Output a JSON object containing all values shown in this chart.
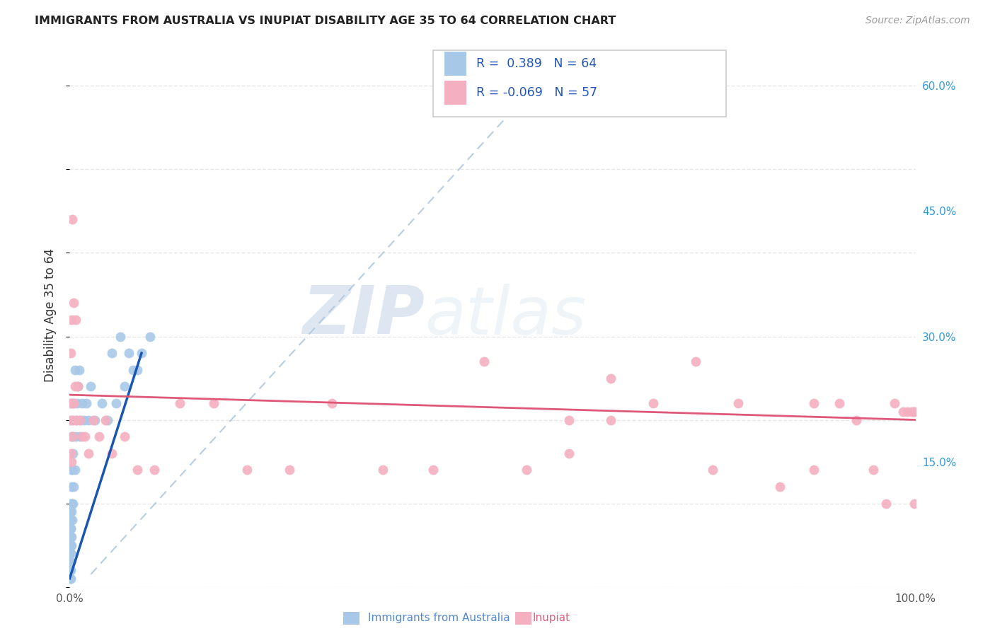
{
  "title": "IMMIGRANTS FROM AUSTRALIA VS INUPIAT DISABILITY AGE 35 TO 64 CORRELATION CHART",
  "source": "Source: ZipAtlas.com",
  "ylabel": "Disability Age 35 to 64",
  "xlim": [
    0,
    1.0
  ],
  "ylim": [
    0,
    0.65
  ],
  "xtick_positions": [
    0.0,
    0.2,
    0.4,
    0.6,
    0.8,
    1.0
  ],
  "xticklabels": [
    "0.0%",
    "",
    "",
    "",
    "",
    "100.0%"
  ],
  "ytick_positions": [
    0.15,
    0.3,
    0.45,
    0.6
  ],
  "ytick_labels": [
    "15.0%",
    "30.0%",
    "45.0%",
    "60.0%"
  ],
  "blue_R": 0.389,
  "blue_N": 64,
  "pink_R": -0.069,
  "pink_N": 57,
  "blue_color": "#a8c8e8",
  "pink_color": "#f4b0c0",
  "blue_line_color": "#1a56b0",
  "pink_line_color": "#e05878",
  "legend_blue_color": "#a8c8e8",
  "legend_pink_color": "#f4b0c0",
  "blue_scatter_x": [
    0.0005,
    0.0005,
    0.0005,
    0.0005,
    0.0005,
    0.0007,
    0.0007,
    0.0007,
    0.001,
    0.001,
    0.001,
    0.001,
    0.001,
    0.001,
    0.001,
    0.001,
    0.0012,
    0.0012,
    0.0012,
    0.0015,
    0.0015,
    0.0015,
    0.0018,
    0.0018,
    0.002,
    0.002,
    0.002,
    0.002,
    0.002,
    0.0025,
    0.003,
    0.003,
    0.003,
    0.0035,
    0.004,
    0.004,
    0.005,
    0.005,
    0.006,
    0.006,
    0.007,
    0.008,
    0.009,
    0.01,
    0.011,
    0.012,
    0.013,
    0.015,
    0.017,
    0.02,
    0.022,
    0.025,
    0.03,
    0.038,
    0.045,
    0.055,
    0.065,
    0.075,
    0.085,
    0.095,
    0.05,
    0.06,
    0.07,
    0.08
  ],
  "blue_scatter_y": [
    0.01,
    0.02,
    0.03,
    0.04,
    0.05,
    0.02,
    0.04,
    0.06,
    0.01,
    0.02,
    0.03,
    0.04,
    0.05,
    0.06,
    0.07,
    0.08,
    0.03,
    0.06,
    0.09,
    0.04,
    0.07,
    0.1,
    0.05,
    0.09,
    0.06,
    0.1,
    0.14,
    0.18,
    0.22,
    0.12,
    0.08,
    0.14,
    0.2,
    0.16,
    0.1,
    0.18,
    0.12,
    0.22,
    0.14,
    0.26,
    0.18,
    0.2,
    0.22,
    0.24,
    0.26,
    0.18,
    0.2,
    0.22,
    0.2,
    0.22,
    0.2,
    0.24,
    0.2,
    0.22,
    0.2,
    0.22,
    0.24,
    0.26,
    0.28,
    0.3,
    0.28,
    0.3,
    0.28,
    0.26
  ],
  "pink_scatter_x": [
    0.0005,
    0.001,
    0.001,
    0.0015,
    0.002,
    0.002,
    0.003,
    0.003,
    0.004,
    0.005,
    0.005,
    0.006,
    0.007,
    0.008,
    0.01,
    0.012,
    0.015,
    0.018,
    0.022,
    0.028,
    0.035,
    0.042,
    0.05,
    0.065,
    0.08,
    0.1,
    0.13,
    0.17,
    0.21,
    0.26,
    0.31,
    0.37,
    0.43,
    0.49,
    0.54,
    0.59,
    0.64,
    0.69,
    0.74,
    0.79,
    0.84,
    0.88,
    0.91,
    0.93,
    0.95,
    0.965,
    0.975,
    0.985,
    0.99,
    0.995,
    0.998,
    0.999,
    0.999,
    0.59,
    0.64,
    0.76,
    0.88
  ],
  "pink_scatter_y": [
    0.2,
    0.16,
    0.22,
    0.28,
    0.15,
    0.32,
    0.18,
    0.44,
    0.2,
    0.22,
    0.34,
    0.24,
    0.32,
    0.2,
    0.24,
    0.2,
    0.18,
    0.18,
    0.16,
    0.2,
    0.18,
    0.2,
    0.16,
    0.18,
    0.14,
    0.14,
    0.22,
    0.22,
    0.14,
    0.14,
    0.22,
    0.14,
    0.14,
    0.27,
    0.14,
    0.16,
    0.25,
    0.22,
    0.27,
    0.22,
    0.12,
    0.22,
    0.22,
    0.2,
    0.14,
    0.1,
    0.22,
    0.21,
    0.21,
    0.21,
    0.21,
    0.21,
    0.1,
    0.2,
    0.2,
    0.14,
    0.14
  ],
  "blue_trendline_x": [
    0.0,
    0.085
  ],
  "blue_trendline_y": [
    0.01,
    0.28
  ],
  "pink_trendline_x": [
    0.0,
    1.0
  ],
  "pink_trendline_y": [
    0.23,
    0.2
  ],
  "diag_line_x": [
    0.025,
    0.55
  ],
  "diag_line_y": [
    0.015,
    0.6
  ],
  "watermark_zip": "ZIP",
  "watermark_atlas": "atlas",
  "background_color": "#ffffff",
  "grid_color": "#e0e0e0",
  "bottom_legend_blue_label": "Immigrants from Australia",
  "bottom_legend_pink_label": "Inupiat"
}
